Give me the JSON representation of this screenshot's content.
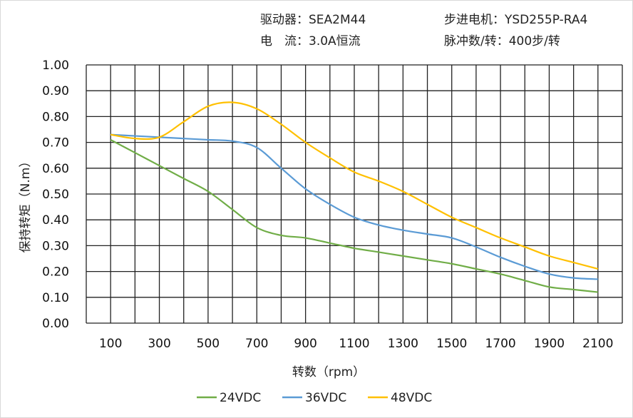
{
  "header": {
    "driver": "驱动器：SEA2M44",
    "motor": "步进电机：YSD255P-RA4",
    "current": "电　流：3.0A恒流",
    "pulses": "脉冲数/转：400步/转"
  },
  "chart_data": {
    "type": "line",
    "title": "",
    "xlabel": "转数（rpm）",
    "ylabel": "保持转矩（N.m）",
    "xlim": [
      0,
      2200
    ],
    "ylim": [
      0,
      1.0
    ],
    "grid": true,
    "legend": "bottom",
    "x_ticks": [
      "100",
      "300",
      "500",
      "700",
      "900",
      "1100",
      "1300",
      "1500",
      "1700",
      "1900",
      "2100"
    ],
    "y_ticks": [
      "0.00",
      "0.10",
      "0.20",
      "0.30",
      "0.40",
      "0.50",
      "0.60",
      "0.70",
      "0.80",
      "0.90",
      "1.00"
    ],
    "x": [
      100,
      200,
      300,
      400,
      500,
      600,
      700,
      800,
      900,
      1000,
      1100,
      1200,
      1300,
      1400,
      1500,
      1600,
      1700,
      1800,
      1900,
      2000,
      2100
    ],
    "series": [
      {
        "name": "24VDC",
        "color": "#70ad47",
        "values": [
          0.71,
          0.66,
          0.61,
          0.56,
          0.51,
          0.44,
          0.37,
          0.34,
          0.33,
          0.31,
          0.29,
          0.275,
          0.26,
          0.245,
          0.23,
          0.21,
          0.19,
          0.165,
          0.14,
          0.13,
          0.12
        ]
      },
      {
        "name": "36VDC",
        "color": "#5b9bd5",
        "values": [
          0.73,
          0.725,
          0.72,
          0.715,
          0.71,
          0.705,
          0.68,
          0.6,
          0.52,
          0.46,
          0.41,
          0.38,
          0.36,
          0.345,
          0.33,
          0.295,
          0.255,
          0.22,
          0.19,
          0.175,
          0.17
        ]
      },
      {
        "name": "48VDC",
        "color": "#ffc000",
        "values": [
          0.73,
          0.715,
          0.72,
          0.78,
          0.84,
          0.855,
          0.83,
          0.77,
          0.7,
          0.64,
          0.585,
          0.55,
          0.51,
          0.46,
          0.41,
          0.37,
          0.33,
          0.295,
          0.26,
          0.235,
          0.21
        ]
      }
    ]
  }
}
